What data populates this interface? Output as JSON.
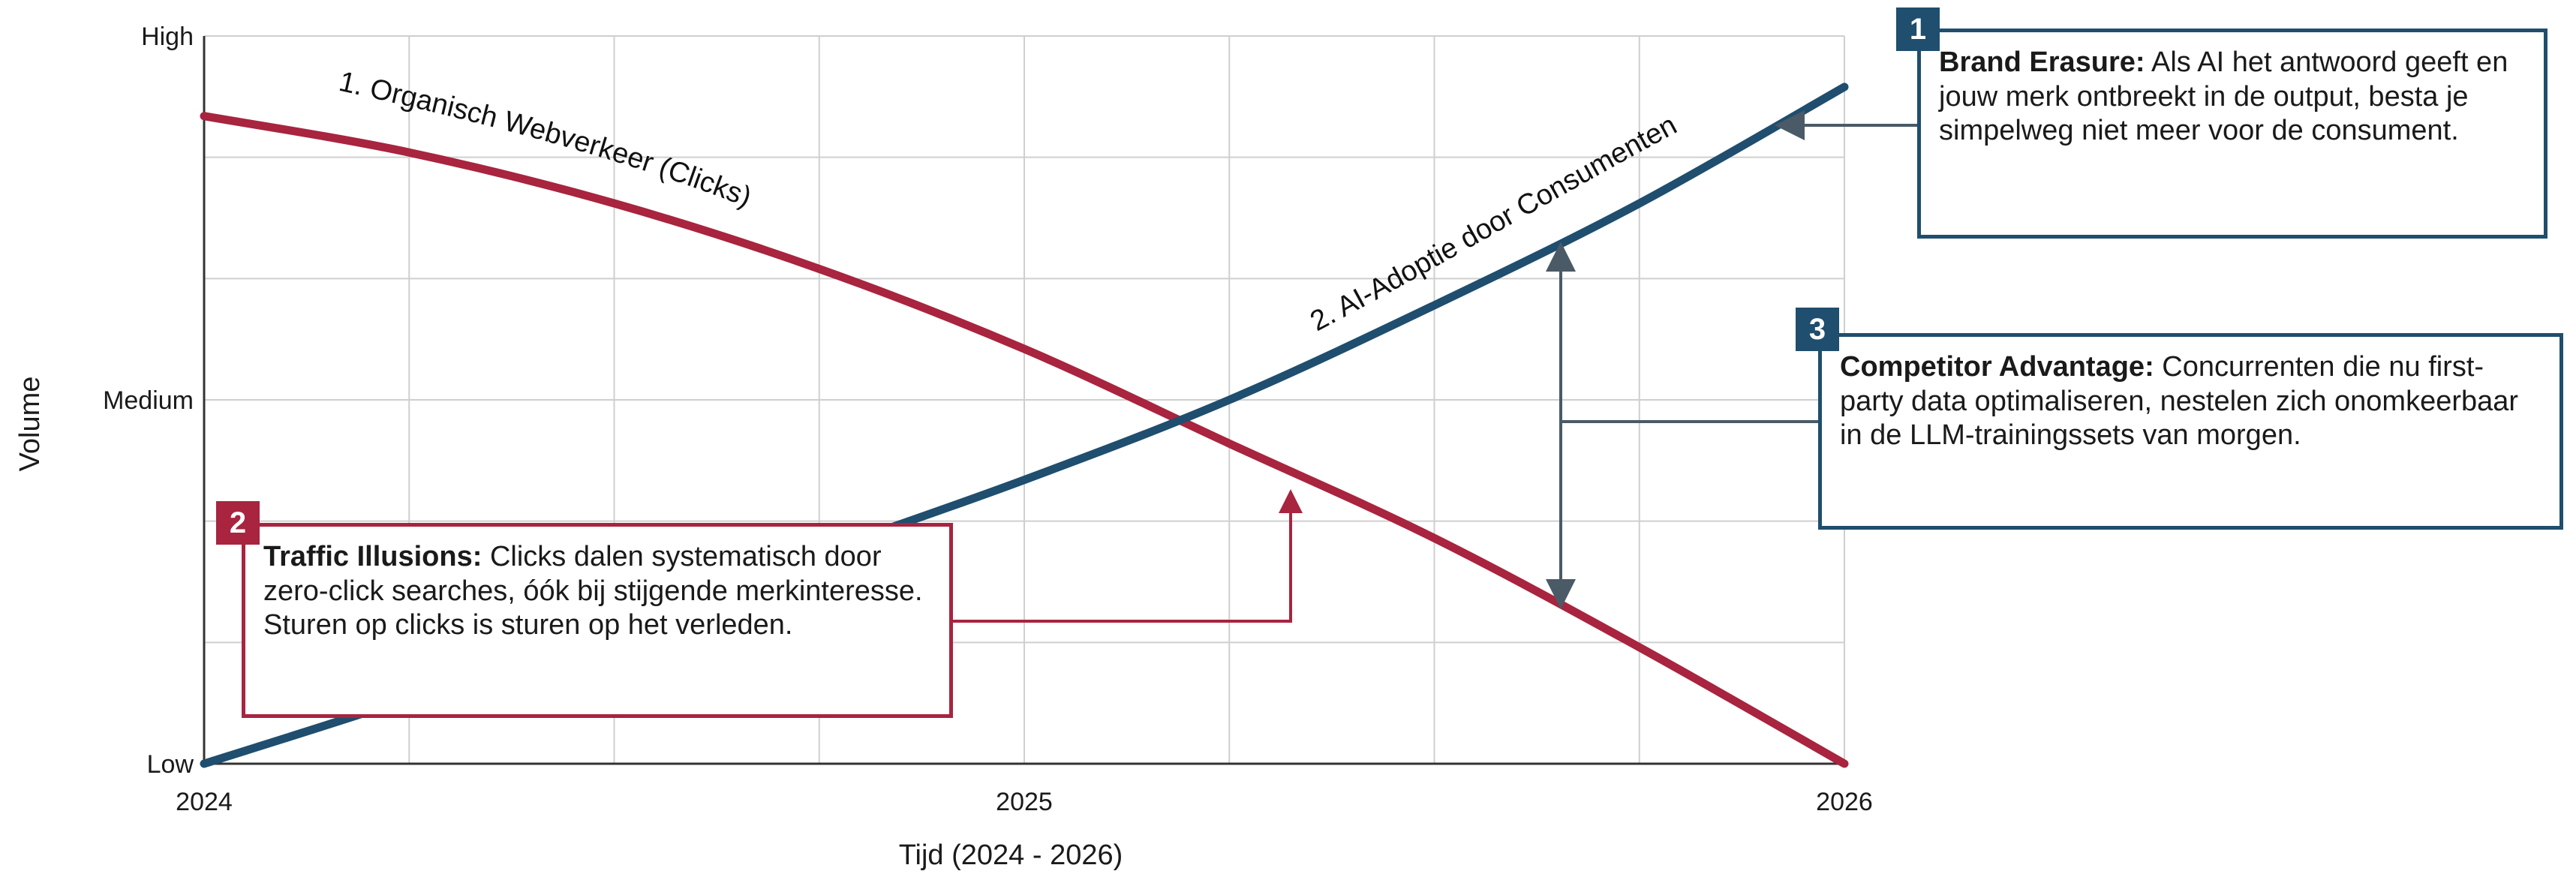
{
  "chart_data": {
    "type": "line",
    "xlabel": "Tijd (2024 - 2026)",
    "ylabel": "Volume",
    "x_ticks": [
      "2024",
      "2025",
      "2026"
    ],
    "xlim": [
      2024,
      2026
    ],
    "y_ticks": [
      "Low",
      "Medium",
      "High"
    ],
    "ylim": [
      0,
      1
    ],
    "grid": true,
    "series": [
      {
        "name": "1. Organisch Webverkeer (Clicks)",
        "color": "#a8243f",
        "x": [
          2024.0,
          2024.25,
          2024.5,
          2024.75,
          2025.0,
          2025.25,
          2025.5,
          2025.75,
          2026.0
        ],
        "y": [
          0.89,
          0.84,
          0.77,
          0.68,
          0.57,
          0.44,
          0.31,
          0.16,
          0.0
        ]
      },
      {
        "name": "2. AI-Adoptie door Consumenten",
        "color": "#1f4e6e",
        "x": [
          2024.0,
          2024.25,
          2024.5,
          2024.75,
          2025.0,
          2025.25,
          2025.5,
          2025.75,
          2026.0
        ],
        "y": [
          0.0,
          0.09,
          0.19,
          0.29,
          0.39,
          0.5,
          0.63,
          0.77,
          0.93
        ]
      }
    ]
  },
  "callouts": [
    {
      "badge": "1",
      "heading": "Brand Erasure:",
      "text": " Als AI het antwoord geeft en jouw merk ontbreekt in de output, besta je simpelweg niet meer voor de consument."
    },
    {
      "badge": "2",
      "heading": "Traffic Illusions:",
      "text": " Clicks dalen systematisch door zero-click searches, óók bij stijgende merkinteresse. Sturen op clicks is sturen op het verleden."
    },
    {
      "badge": "3",
      "heading": "Competitor Advantage:",
      "text": " Concurrenten die nu first-party data optimaliseren, nestelen zich onomkeerbaar in de LLM-trainingssets van morgen."
    }
  ],
  "colors": {
    "blue": "#1f4e6e",
    "red": "#a8243f",
    "grid": "#cfcfcf",
    "axis": "#333333"
  }
}
